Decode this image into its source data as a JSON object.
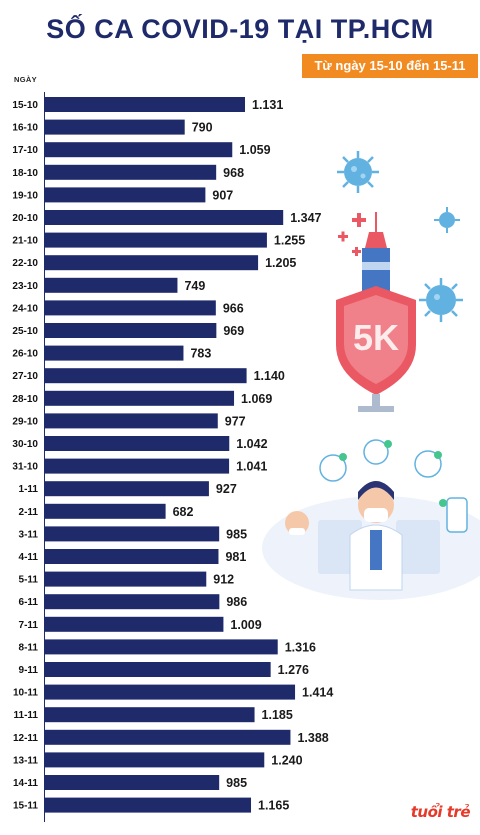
{
  "header": {
    "title": "SỐ CA COVID-19 TẠI TP.HCM",
    "subtitle": "Từ ngày 15-10 đến 15-11"
  },
  "colors": {
    "bar": "#1f2a6b",
    "title": "#1f2a6b",
    "subtitle_bg": "#f18a21",
    "accent": "#e8505b"
  },
  "brand": {
    "logo_text": "tuổi trẻ"
  },
  "chart_data": {
    "type": "bar",
    "orientation": "horizontal",
    "title": "SỐ CA COVID-19 TẠI TP.HCM",
    "subtitle": "Từ ngày 15-10 đến 15-11",
    "ylabel": "NGÀY",
    "categories": [
      "15-10",
      "16-10",
      "17-10",
      "18-10",
      "19-10",
      "20-10",
      "21-10",
      "22-10",
      "23-10",
      "24-10",
      "25-10",
      "26-10",
      "27-10",
      "28-10",
      "29-10",
      "30-10",
      "31-10",
      "1-11",
      "2-11",
      "3-11",
      "4-11",
      "5-11",
      "6-11",
      "7-11",
      "8-11",
      "9-11",
      "10-11",
      "11-11",
      "12-11",
      "13-11",
      "14-11",
      "15-11"
    ],
    "values": [
      1131,
      790,
      1059,
      968,
      907,
      1347,
      1255,
      1205,
      749,
      966,
      969,
      783,
      1140,
      1069,
      977,
      1042,
      1041,
      927,
      682,
      985,
      981,
      912,
      986,
      1009,
      1316,
      1276,
      1414,
      1185,
      1388,
      1240,
      985,
      1165
    ],
    "value_labels": [
      "1.131",
      "790",
      "1.059",
      "968",
      "907",
      "1.347",
      "1.255",
      "1.205",
      "749",
      "966",
      "969",
      "783",
      "1.140",
      "1.069",
      "977",
      "1.042",
      "1.041",
      "927",
      "682",
      "985",
      "981",
      "912",
      "986",
      "1.009",
      "1.316",
      "1.276",
      "1.414",
      "1.185",
      "1.388",
      "1.240",
      "985",
      "1.165"
    ],
    "grid": false,
    "legend": "none"
  }
}
